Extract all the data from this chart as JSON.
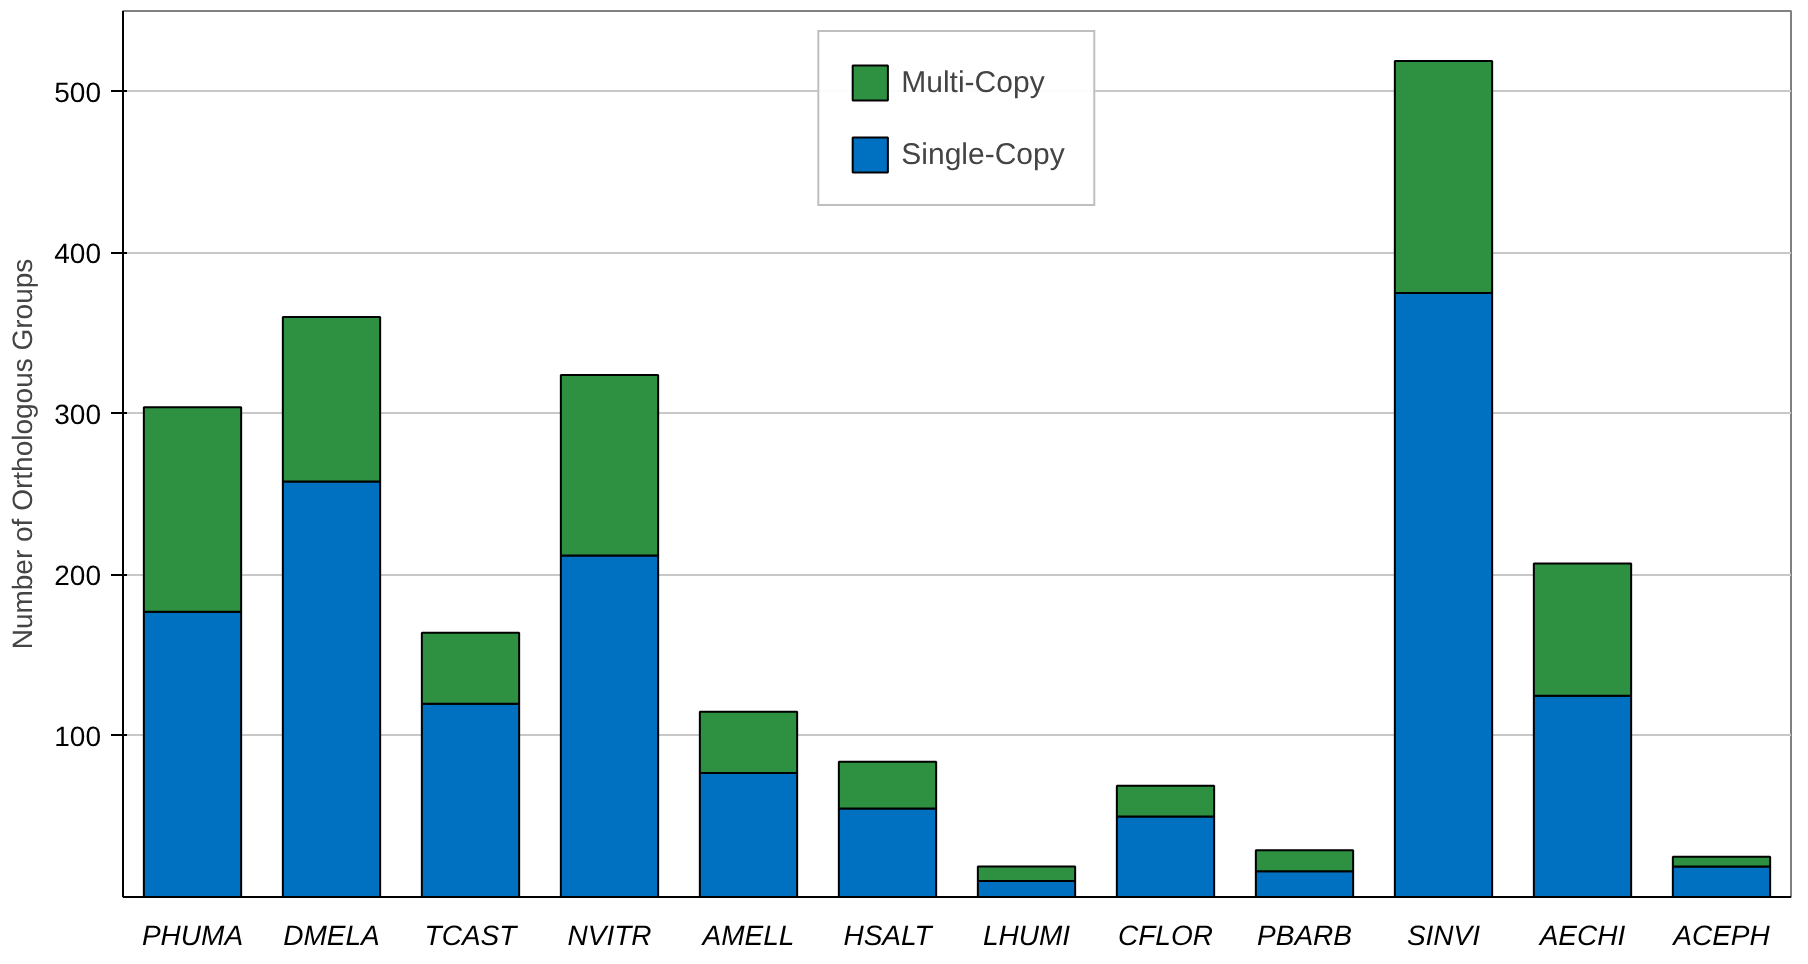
{
  "chart_data": {
    "type": "bar",
    "stacked": true,
    "ylabel": "Number of Orthologous Groups",
    "categories": [
      "PHUMA",
      "DMELA",
      "TCAST",
      "NVITR",
      "AMELL",
      "HSALT",
      "LHUMI",
      "CFLOR",
      "PBARB",
      "SINVI",
      "AECHI",
      "ACEPH"
    ],
    "series": [
      {
        "name": "Single-Copy",
        "color": "#0070c0",
        "values": [
          177,
          258,
          120,
          212,
          77,
          55,
          10,
          50,
          16,
          375,
          125,
          19
        ]
      },
      {
        "name": "Multi-Copy",
        "color": "#2e9142",
        "values": [
          127,
          102,
          44,
          112,
          38,
          29,
          9,
          19,
          13,
          144,
          82,
          6
        ]
      }
    ],
    "ylim": [
      0,
      550
    ],
    "yticks": [
      100,
      200,
      300,
      400,
      500
    ],
    "grid": "y",
    "legend": "top"
  }
}
